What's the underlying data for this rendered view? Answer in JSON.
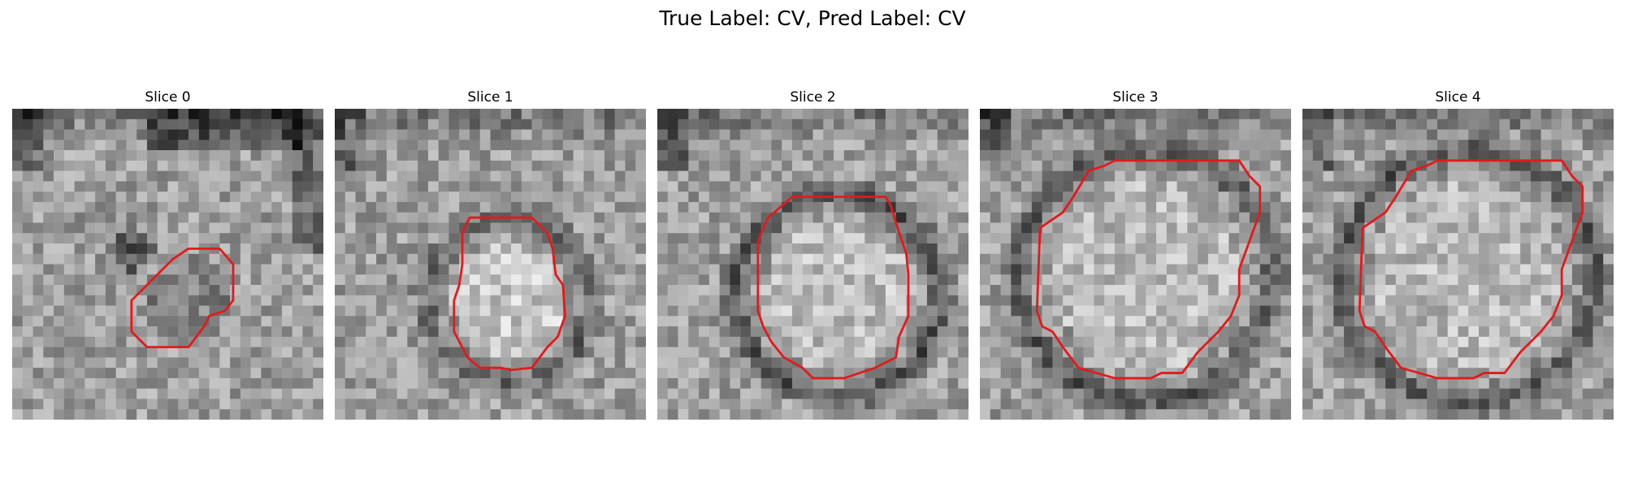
{
  "figure": {
    "suptitle": "True Label: CV, Pred Label: CV",
    "contour_color": "#e31a1c",
    "panels": [
      {
        "title": "Slice 0",
        "image": "grayscale CT slice (pixelated)",
        "seed": 11,
        "ring": 0.0,
        "bright": 0.0
      },
      {
        "title": "Slice 1",
        "image": "grayscale CT slice (pixelated)",
        "seed": 23,
        "ring": 0.55,
        "bright": 0.45
      },
      {
        "title": "Slice 2",
        "image": "grayscale CT slice (pixelated)",
        "seed": 37,
        "ring": 0.75,
        "bright": 0.35
      },
      {
        "title": "Slice 3",
        "image": "grayscale CT slice (pixelated)",
        "seed": 41,
        "ring": 0.7,
        "bright": 0.3
      },
      {
        "title": "Slice 4",
        "image": "grayscale CT slice (pixelated)",
        "seed": 53,
        "ring": 0.7,
        "bright": 0.3
      }
    ]
  }
}
